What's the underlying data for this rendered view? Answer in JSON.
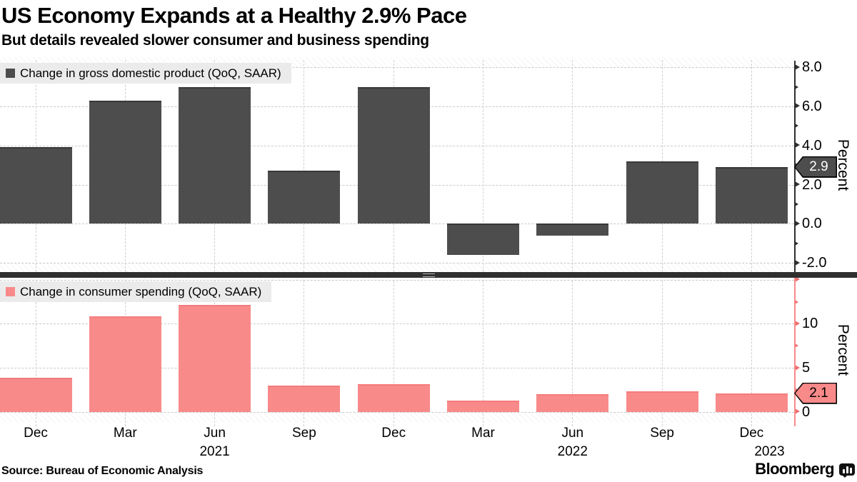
{
  "header": {
    "title": "US Economy Expands at a Healthy 2.9% Pace",
    "subtitle": "But details revealed slower consumer and business spending"
  },
  "chart_data": [
    {
      "type": "bar",
      "panel": "top",
      "legend": "Change in gross domestic product (QoQ, SAAR)",
      "ylabel": "Percent",
      "ylim": [
        -2.5,
        8.6
      ],
      "grid": true,
      "legend_position": "top-left",
      "bar_color": "#4d4d4d",
      "bar_edge_color": "#383838",
      "axis_color": "#2f2f2f",
      "tick_color": "#2f2f2f",
      "categories": [
        "Dec 2020",
        "Mar 2021",
        "Jun 2021",
        "Sep 2021",
        "Dec 2021",
        "Mar 2022",
        "Jun 2022",
        "Sep 2022",
        "Dec 2022"
      ],
      "values": [
        3.9,
        6.3,
        7.0,
        2.7,
        7.0,
        -1.6,
        -0.6,
        3.2,
        2.9
      ],
      "yticks": [
        {
          "value": 8,
          "label": "8.0"
        },
        {
          "value": 6,
          "label": "6.0"
        },
        {
          "value": 4,
          "label": "4.0"
        },
        {
          "value": 2,
          "label": "2.0"
        },
        {
          "value": 0,
          "label": "0.0"
        },
        {
          "value": -2,
          "label": "-2.0"
        }
      ],
      "last_value": 2.9,
      "last_value_label": "2.9",
      "badge_bg": "#4d4d4d",
      "badge_text_color": "#ffffff"
    },
    {
      "type": "bar",
      "panel": "bottom",
      "legend": "Change in consumer spending (QoQ, SAAR)",
      "ylabel": "Percent",
      "ylim": [
        -1.2,
        15.2
      ],
      "grid": true,
      "legend_position": "top-left",
      "bar_color": "#f98a8a",
      "bar_edge_color": "#f47c7c",
      "axis_color": "#f98a8a",
      "tick_color": "#f26d6d",
      "categories": [
        "Dec 2020",
        "Mar 2021",
        "Jun 2021",
        "Sep 2021",
        "Dec 2021",
        "Mar 2022",
        "Jun 2022",
        "Sep 2022",
        "Dec 2022"
      ],
      "values": [
        3.9,
        10.8,
        12.1,
        3.0,
        3.1,
        1.3,
        2.0,
        2.3,
        2.1
      ],
      "yticks": [
        {
          "value": 15,
          "label": ""
        },
        {
          "value": 10,
          "label": "10"
        },
        {
          "value": 5,
          "label": "5"
        },
        {
          "value": 0,
          "label": "0"
        }
      ],
      "last_value": 2.1,
      "last_value_label": "2.1",
      "badge_bg": "#f98a8a",
      "badge_text_color": "#000000"
    }
  ],
  "xaxis": {
    "months": [
      "Dec",
      "Mar",
      "Jun",
      "Sep",
      "Dec",
      "Mar",
      "Jun",
      "Sep",
      "Dec"
    ],
    "years": [
      {
        "label": "2021",
        "index": 2
      },
      {
        "label": "2022",
        "index": 6
      },
      {
        "label": "2023",
        "index": 8.2
      }
    ]
  },
  "footer": {
    "source": "Source: Bureau of Economic Analysis",
    "brand": "Bloomberg",
    "brand_icon": "bloomberg-terminal-icon"
  }
}
